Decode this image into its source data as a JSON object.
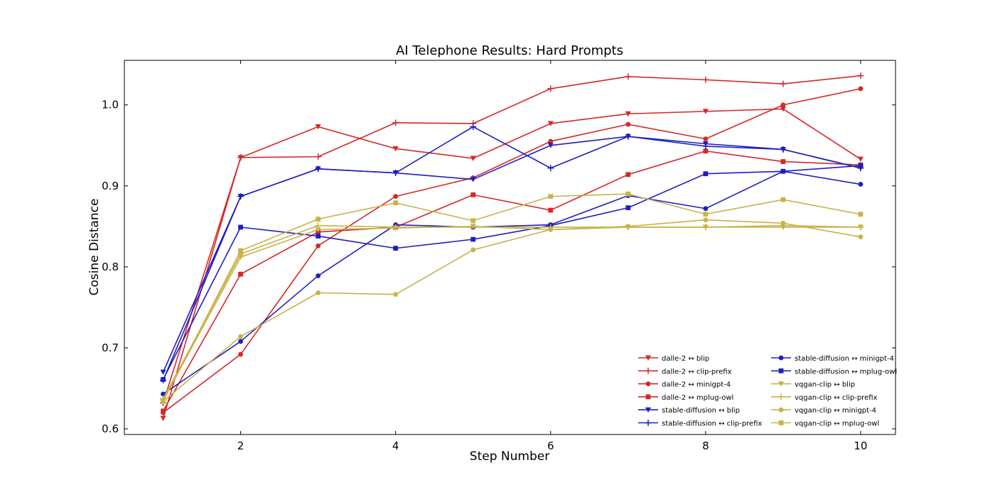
{
  "chart_data": {
    "type": "line",
    "title": "AI Telephone Results: Hard Prompts",
    "xlabel": "Step Number",
    "ylabel": "Cosine Distance",
    "x": [
      1,
      2,
      3,
      4,
      5,
      6,
      7,
      8,
      9,
      10
    ],
    "xlim": [
      0.5,
      10.45
    ],
    "ylim": [
      0.593,
      1.055
    ],
    "xticks": [
      "2",
      "4",
      "6",
      "8",
      "10"
    ],
    "yticks": [
      "0.6",
      "0.7",
      "0.8",
      "0.9",
      "1.0"
    ],
    "grid": false,
    "legend_position": "lower-right",
    "series": [
      {
        "name": "dalle-2 ↔ blip",
        "color": "#d62728",
        "marker": "triangle-down",
        "values": [
          0.613,
          0.935,
          0.973,
          0.946,
          0.934,
          0.977,
          0.989,
          0.992,
          0.995,
          0.933
        ]
      },
      {
        "name": "dalle-2 ↔ clip-prefix",
        "color": "#d62728",
        "marker": "plus",
        "values": [
          0.632,
          0.935,
          0.936,
          0.978,
          0.977,
          1.02,
          1.035,
          1.031,
          1.026,
          1.036
        ]
      },
      {
        "name": "dalle-2 ↔ minigpt-4",
        "color": "#d62728",
        "marker": "circle",
        "values": [
          0.62,
          0.692,
          0.826,
          0.887,
          0.91,
          0.955,
          0.976,
          0.958,
          1.0,
          1.02
        ]
      },
      {
        "name": "dalle-2 ↔ mplug-owl",
        "color": "#d62728",
        "marker": "square",
        "values": [
          0.622,
          0.791,
          0.843,
          0.849,
          0.889,
          0.87,
          0.914,
          0.943,
          0.93,
          0.926
        ]
      },
      {
        "name": "stable-diffusion ↔ blip",
        "color": "#1f1fbf",
        "marker": "triangle-down",
        "values": [
          0.67,
          0.887,
          0.921,
          0.916,
          0.908,
          0.95,
          0.961,
          0.952,
          0.945,
          0.922
        ]
      },
      {
        "name": "stable-diffusion ↔ clip-prefix",
        "color": "#1f1fbf",
        "marker": "plus",
        "values": [
          0.66,
          0.887,
          0.921,
          0.916,
          0.973,
          0.922,
          0.961,
          0.949,
          0.945,
          0.922
        ]
      },
      {
        "name": "stable-diffusion ↔ minigpt-4",
        "color": "#1f1fbf",
        "marker": "circle",
        "values": [
          0.643,
          0.708,
          0.789,
          0.852,
          0.849,
          0.852,
          0.888,
          0.872,
          0.918,
          0.902
        ]
      },
      {
        "name": "stable-diffusion ↔ mplug-owl",
        "color": "#1f1fbf",
        "marker": "square",
        "values": [
          0.661,
          0.849,
          0.838,
          0.823,
          0.834,
          0.851,
          0.873,
          0.915,
          0.918,
          0.925
        ]
      },
      {
        "name": "vqgan-clip ↔ blip",
        "color": "#c8b34a",
        "marker": "triangle-down",
        "values": [
          0.635,
          0.812,
          0.846,
          0.848,
          0.85,
          0.846,
          0.849,
          0.849,
          0.849,
          0.849
        ]
      },
      {
        "name": "vqgan-clip ↔ clip-prefix",
        "color": "#c8b34a",
        "marker": "plus",
        "values": [
          0.637,
          0.816,
          0.851,
          0.849,
          0.849,
          0.849,
          0.849,
          0.849,
          0.851,
          0.849
        ]
      },
      {
        "name": "vqgan-clip ↔ minigpt-4",
        "color": "#c8b34a",
        "marker": "circle",
        "values": [
          0.634,
          0.714,
          0.768,
          0.766,
          0.821,
          0.846,
          0.85,
          0.858,
          0.854,
          0.837
        ]
      },
      {
        "name": "vqgan-clip ↔ mplug-owl",
        "color": "#c8b34a",
        "marker": "square",
        "values": [
          0.634,
          0.82,
          0.859,
          0.879,
          0.857,
          0.887,
          0.89,
          0.865,
          0.883,
          0.865
        ]
      }
    ]
  }
}
